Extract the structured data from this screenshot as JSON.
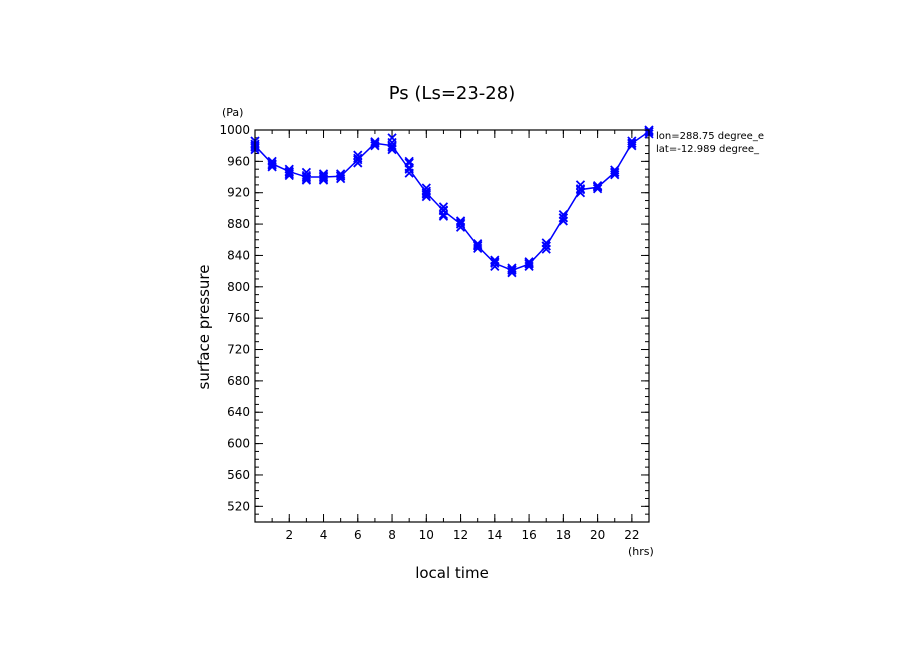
{
  "chart_data": {
    "type": "line",
    "title": "Ps (Ls=23-28)",
    "xlabel": "local time",
    "ylabel": "surface pressure",
    "x_unit": "(hrs)",
    "y_unit": "(Pa)",
    "xlim": [
      0,
      23
    ],
    "ylim": [
      500,
      1000
    ],
    "xticks": [
      2,
      4,
      6,
      8,
      10,
      12,
      14,
      16,
      18,
      20,
      22
    ],
    "yticks": [
      520,
      560,
      600,
      640,
      680,
      720,
      760,
      800,
      840,
      880,
      920,
      960,
      1000
    ],
    "annotations": [
      "lon=288.75 degree_e",
      "lat=-12.989 degree_"
    ],
    "grid": false,
    "color": "#0000ff",
    "series": [
      {
        "marker": "x",
        "x": [
          0,
          1,
          2,
          3,
          4,
          5,
          6,
          7,
          8,
          9,
          10,
          11,
          12,
          13,
          14,
          15,
          16,
          17,
          18,
          19,
          20,
          21,
          22,
          23
        ],
        "y": [
          980,
          957,
          947,
          940,
          940,
          941,
          962,
          983,
          980,
          950,
          920,
          897,
          880,
          852,
          830,
          821,
          829,
          852,
          888,
          924,
          927,
          946,
          983,
          998
        ],
        "scatter": [
          [
            978,
            982,
            986,
            975
          ],
          [
            955,
            960,
            953
          ],
          [
            944,
            950,
            946,
            942
          ],
          [
            936,
            942,
            946,
            938
          ],
          [
            936,
            942,
            944,
            938
          ],
          [
            938,
            942,
            944
          ],
          [
            958,
            964,
            968
          ],
          [
            980,
            985,
            983
          ],
          [
            975,
            984,
            990,
            978
          ],
          [
            945,
            952,
            958,
            960
          ],
          [
            915,
            922,
            926,
            918
          ],
          [
            892,
            898,
            902,
            890
          ],
          [
            876,
            882,
            884
          ],
          [
            849,
            853,
            855
          ],
          [
            826,
            832,
            834
          ],
          [
            818,
            822,
            824
          ],
          [
            826,
            830,
            832
          ],
          [
            848,
            852,
            856
          ],
          [
            884,
            888,
            892
          ],
          [
            920,
            925,
            930
          ],
          [
            925,
            928,
            929
          ],
          [
            943,
            946,
            949
          ],
          [
            980,
            983,
            986
          ],
          [
            995,
            998,
            1000
          ]
        ]
      }
    ]
  }
}
